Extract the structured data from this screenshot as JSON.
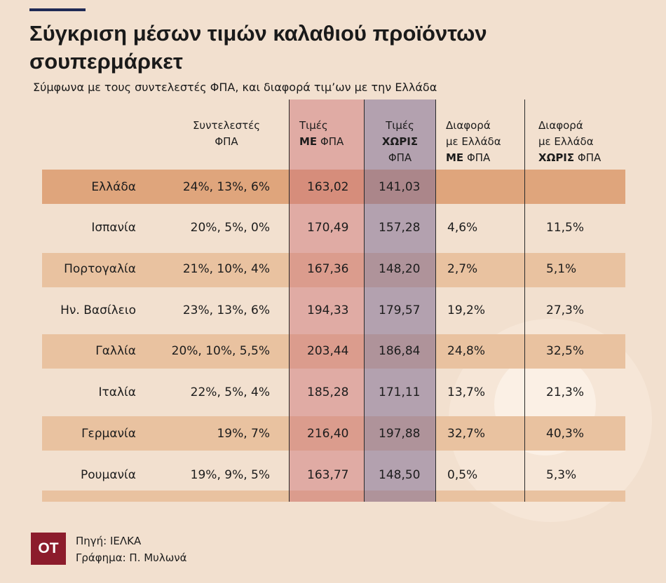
{
  "title": "Σύγκριση μέσων τιμών καλαθιού προϊόντων σουπερμάρκετ",
  "subtitle": "Σύμφωνα με τους συντελεστές ΦΠΑ, και διαφορά τιμ’ων με την Ελλάδα",
  "headers": {
    "vat": [
      "Συντελεστές",
      "ΦΠΑ"
    ],
    "with": [
      "Τιμές",
      "ΜΕ",
      "ΦΠΑ"
    ],
    "without": [
      "Τιμές",
      "ΧΩΡΙΣ",
      "ΦΠΑ"
    ],
    "diff_with": [
      "Διαφορά",
      "με Ελλάδα",
      "ΜΕ",
      "ΦΠΑ"
    ],
    "diff_without": [
      "Διαφορά",
      "με Ελλάδα",
      "ΧΩΡΙΣ",
      "ΦΠΑ"
    ]
  },
  "rows": [
    {
      "country": "Ελλάδα",
      "vat": "24%, 13%, 6%",
      "with": "163,02",
      "without": "141,03",
      "diff_with": "",
      "diff_without": ""
    },
    {
      "country": "Ισπανία",
      "vat": "20%, 5%, 0%",
      "with": "170,49",
      "without": "157,28",
      "diff_with": "4,6%",
      "diff_without": "11,5%"
    },
    {
      "country": "Πορτογαλία",
      "vat": "21%, 10%, 4%",
      "with": "167,36",
      "without": "148,20",
      "diff_with": "2,7%",
      "diff_without": "5,1%"
    },
    {
      "country": "Ην. Βασίλειο",
      "vat": "23%, 13%, 6%",
      "with": "194,33",
      "without": "179,57",
      "diff_with": "19,2%",
      "diff_without": "27,3%"
    },
    {
      "country": "Γαλλία",
      "vat": "20%, 10%, 5,5%",
      "with": "203,44",
      "without": "186,84",
      "diff_with": "24,8%",
      "diff_without": "32,5%"
    },
    {
      "country": "Ιταλία",
      "vat": "22%, 5%, 4%",
      "with": "185,28",
      "without": "171,11",
      "diff_with": "13,7%",
      "diff_without": "21,3%"
    },
    {
      "country": "Γερμανία",
      "vat": "19%, 7%",
      "with": "216,40",
      "without": "197,88",
      "diff_with": "32,7%",
      "diff_without": "40,3%"
    },
    {
      "country": "Ρουμανία",
      "vat": "19%, 9%, 5%",
      "with": "163,77",
      "without": "148,50",
      "diff_with": "0,5%",
      "diff_without": "5,3%"
    }
  ],
  "footer": {
    "logo": "OT",
    "source": "Πηγή: ΙΕΛΚΑ",
    "credit": "Γράφημα: Π. Μυλωνά"
  },
  "colors": {
    "background": "#f2e0cf",
    "row_shade": "#e9c2a0",
    "row_highlight": "#dfa57c",
    "with_vat_column": "#ce767a",
    "without_vat_column": "#806e96",
    "accent_rule": "#1f2a55",
    "logo": "#8c1c2c"
  }
}
